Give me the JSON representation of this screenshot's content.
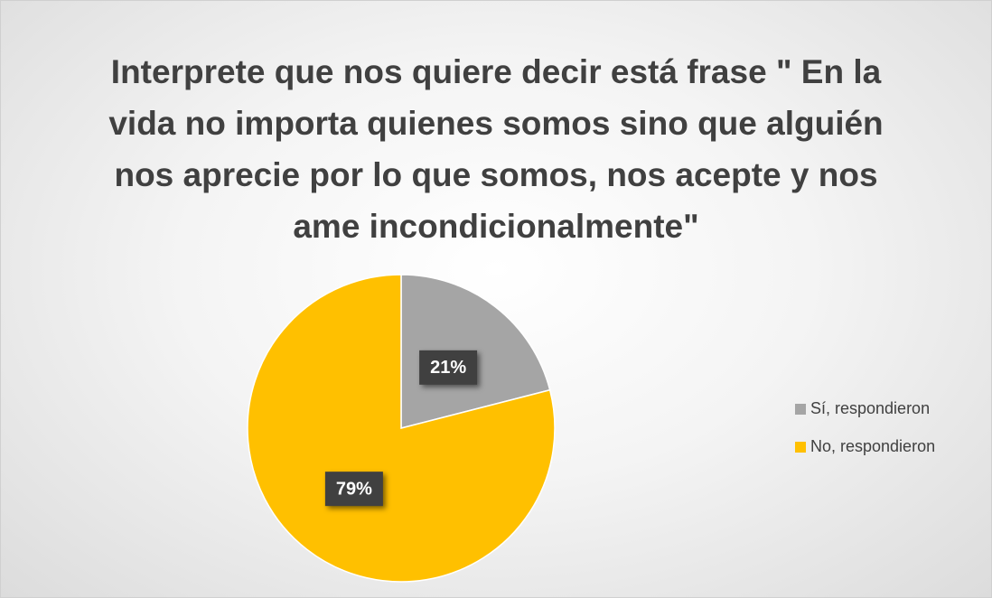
{
  "chart_data": {
    "type": "pie",
    "title": "Interprete que nos quiere decir está frase \" En la vida no importa quienes somos sino que alguién nos aprecie por lo que somos, nos acepte y nos ame incondicionalmente\"",
    "categories": [
      "Sí, respondieron",
      "No, respondieron"
    ],
    "values": [
      21,
      79
    ],
    "value_labels": [
      "21%",
      "79%"
    ],
    "colors": [
      "#a5a5a5",
      "#ffc000"
    ],
    "legend": "right"
  }
}
